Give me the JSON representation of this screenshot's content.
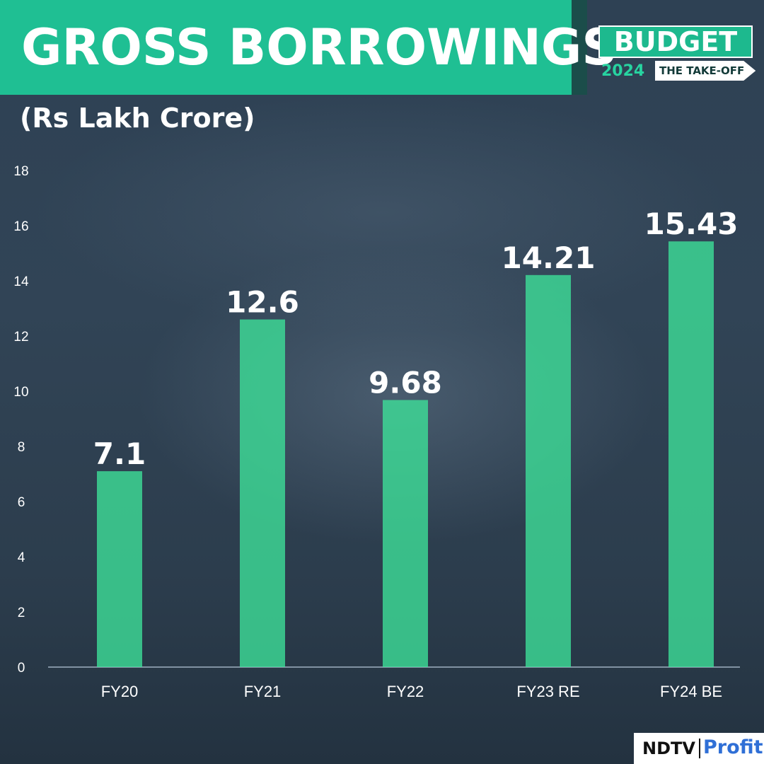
{
  "header": {
    "title": "GROSS BORROWINGS",
    "unit": "(Rs Lakh Crore)"
  },
  "badge": {
    "label": "BUDGET",
    "year": "2024",
    "tagline": "THE TAKE-OFF"
  },
  "brand": {
    "left": "NDTV",
    "right": "Profit"
  },
  "colors": {
    "accent": "#1fbf93",
    "bar": "#3ee39a",
    "brand_blue": "#2f6fd6"
  },
  "chart_data": {
    "type": "bar",
    "categories": [
      "FY20",
      "FY21",
      "FY22",
      "FY23 RE",
      "FY24 BE"
    ],
    "values": [
      7.1,
      12.6,
      9.68,
      14.21,
      15.43
    ],
    "data_labels": [
      "7.1",
      "12.6",
      "9.68",
      "14.21",
      "15.43"
    ],
    "title": "GROSS BORROWINGS",
    "ylabel": "(Rs Lakh Crore)",
    "xlabel": "",
    "ylim": [
      0,
      18
    ],
    "yticks": [
      0,
      2,
      4,
      6,
      8,
      10,
      12,
      14,
      16,
      18
    ],
    "grid": false,
    "legend": "none"
  }
}
